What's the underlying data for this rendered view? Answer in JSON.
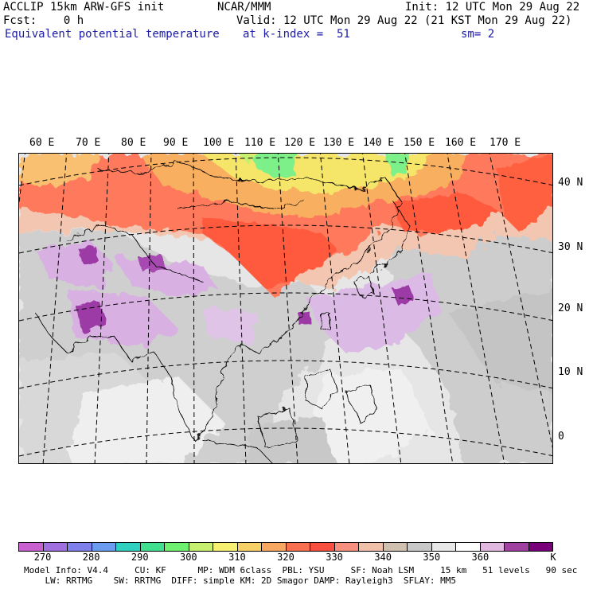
{
  "header": {
    "line1_left": "ACCLIP 15km ARW-GFS init",
    "line1_center": "NCAR/MMM",
    "line1_right": "Init: 12 UTC Mon 29 Aug 22",
    "line2_left": "Fcst:    0 h",
    "line2_right": "Valid: 12 UTC Mon 29 Aug 22 (21 KST Mon 29 Aug 22)",
    "line3_left": "Equivalent potential temperature",
    "line3_center": "at k-index =  51",
    "line3_right": "sm= 2"
  },
  "map": {
    "lon_labels": [
      "60 E",
      "70 E",
      "80 E",
      "90 E",
      "100 E",
      "110 E",
      "120 E",
      "130 E",
      "140 E",
      "150 E",
      "160 E",
      "170 E"
    ],
    "lat_labels": [
      "40 N",
      "30 N",
      "20 N",
      "10 N",
      "0"
    ],
    "colors": {
      "land_base": "#d9d9d9",
      "ocean_base": "#e6e6e6",
      "orange_band": "#ff7256",
      "red_core": "#ff5a3c",
      "yellow": "#f5e66a",
      "green": "#7ef08a",
      "lavender": "#d8b0e2",
      "purple": "#9c3aa6"
    }
  },
  "colorbar": {
    "colors": [
      "#c860d0",
      "#a070e0",
      "#8080ec",
      "#6c9cf0",
      "#30d0c0",
      "#40e090",
      "#70f070",
      "#c8f070",
      "#f8f070",
      "#f8d068",
      "#f8a860",
      "#f87050",
      "#f85040",
      "#f89080",
      "#f0c0a8",
      "#d0c0b0",
      "#c8c8c8",
      "#e8e8e8",
      "#ffffff",
      "#e0b8e0",
      "#a040a0",
      "#780078"
    ],
    "labels": [
      "270",
      "280",
      "290",
      "300",
      "310",
      "320",
      "330",
      "340",
      "350",
      "360",
      "K"
    ]
  },
  "model_info": {
    "line1": "Model Info: V4.4     CU: KF      MP: WDM 6class  PBL: YSU     SF: Noah LSM     15 km   51 levels   90 sec",
    "line2": "    LW: RRTMG    SW: RRTMG  DIFF: simple KM: 2D Smagor DAMP: Rayleigh3  SFLAY: MM5"
  }
}
